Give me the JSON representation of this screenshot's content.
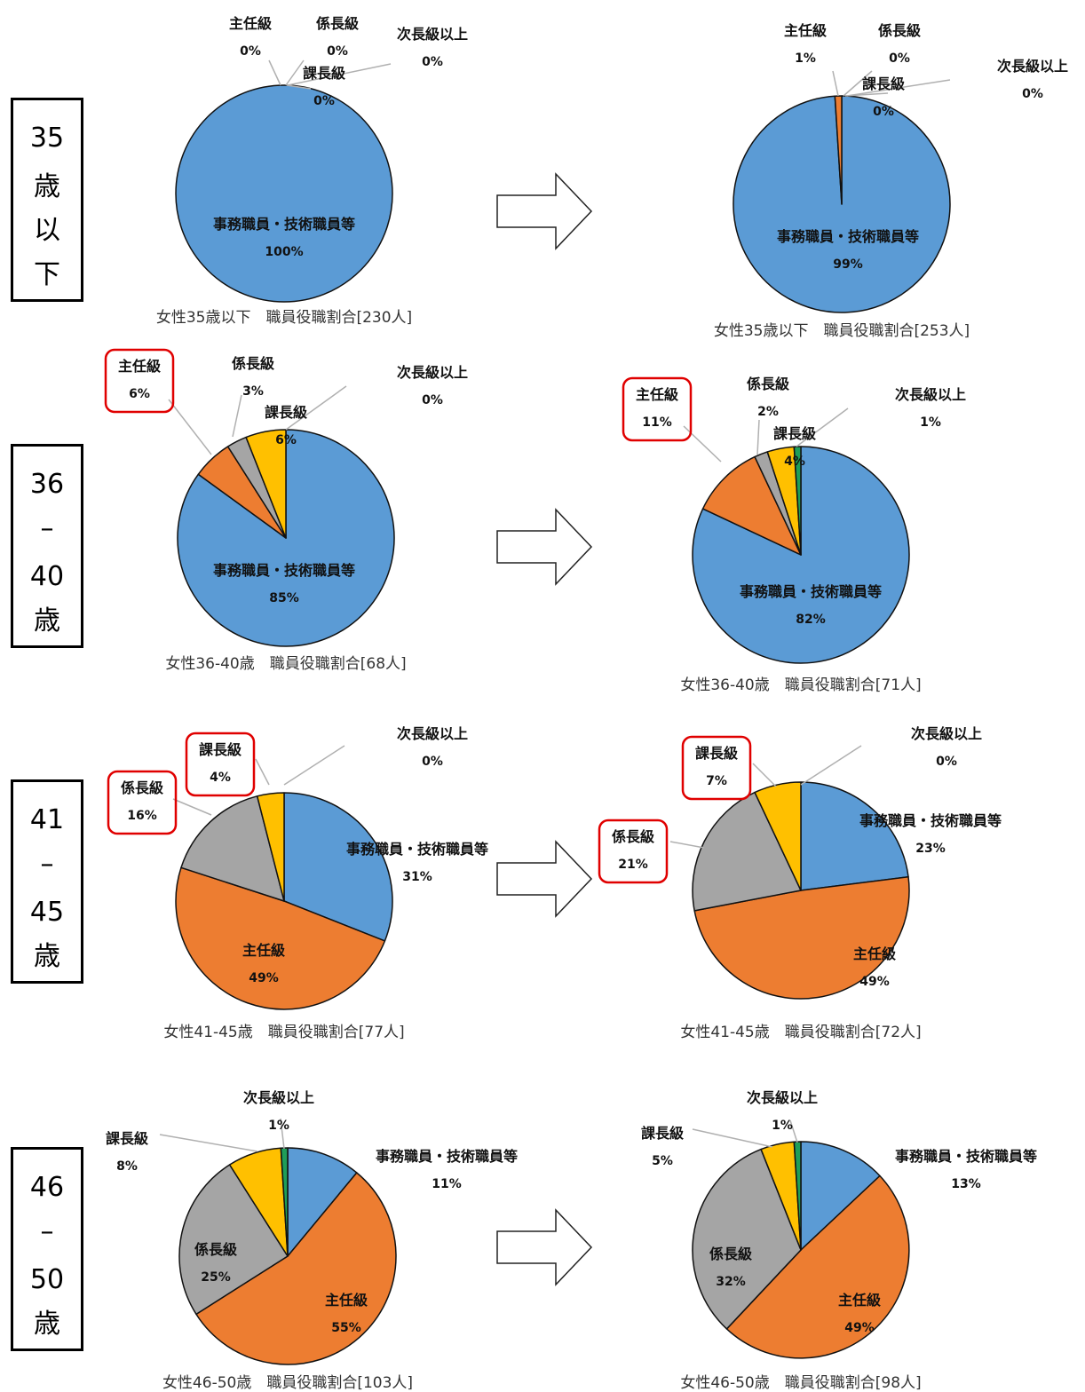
{
  "colors": {
    "事務職員・技術職員等": "#5b9bd5",
    "主任級": "#ed7d31",
    "係長級": "#a5a5a5",
    "課長級": "#ffc000",
    "次長級以上": "#1f9e59"
  },
  "age_groups": [
    {
      "label": [
        "35",
        "歳",
        "以",
        "下"
      ]
    },
    {
      "label": [
        "36",
        "–",
        "40",
        "歳"
      ]
    },
    {
      "label": [
        "41",
        "–",
        "45",
        "歳"
      ]
    },
    {
      "label": [
        "46",
        "–",
        "50",
        "歳"
      ]
    }
  ],
  "chart_data": [
    {
      "type": "pie",
      "title": "女性35歳以下　職員役職割合[230人]",
      "categories": [
        "事務職員・技術職員等",
        "主任級",
        "係長級",
        "課長級",
        "次長級以上"
      ],
      "values": [
        100,
        0,
        0,
        0,
        0
      ]
    },
    {
      "type": "pie",
      "title": "女性35歳以下　職員役職割合[253人]",
      "categories": [
        "事務職員・技術職員等",
        "主任級",
        "係長級",
        "課長級",
        "次長級以上"
      ],
      "values": [
        99,
        1,
        0,
        0,
        0
      ]
    },
    {
      "type": "pie",
      "title": "女性36-40歳　職員役職割合[68人]",
      "categories": [
        "事務職員・技術職員等",
        "主任級",
        "係長級",
        "課長級",
        "次長級以上"
      ],
      "values": [
        85,
        6,
        3,
        6,
        0
      ]
    },
    {
      "type": "pie",
      "title": "女性36-40歳　職員役職割合[71人]",
      "categories": [
        "事務職員・技術職員等",
        "主任級",
        "係長級",
        "課長級",
        "次長級以上"
      ],
      "values": [
        82,
        11,
        2,
        4,
        1
      ]
    },
    {
      "type": "pie",
      "title": "女性41-45歳　職員役職割合[77人]",
      "categories": [
        "事務職員・技術職員等",
        "主任級",
        "係長級",
        "課長級",
        "次長級以上"
      ],
      "values": [
        31,
        49,
        16,
        4,
        0
      ]
    },
    {
      "type": "pie",
      "title": "女性41-45歳　職員役職割合[72人]",
      "categories": [
        "事務職員・技術職員等",
        "主任級",
        "係長級",
        "課長級",
        "次長級以上"
      ],
      "values": [
        23,
        49,
        21,
        7,
        0
      ]
    },
    {
      "type": "pie",
      "title": "女性46-50歳　職員役職割合[103人]",
      "categories": [
        "事務職員・技術職員等",
        "主任級",
        "係長級",
        "課長級",
        "次長級以上"
      ],
      "values": [
        11,
        55,
        25,
        8,
        1
      ]
    },
    {
      "type": "pie",
      "title": "女性46-50歳　職員役職割合[98人]",
      "categories": [
        "事務職員・技術職員等",
        "主任級",
        "係長級",
        "課長級",
        "次長級以上"
      ],
      "values": [
        13,
        49,
        32,
        5,
        1
      ]
    }
  ],
  "highlighted_labels": [
    {
      "chart": 2,
      "category": "主任級"
    },
    {
      "chart": 3,
      "category": "主任級"
    },
    {
      "chart": 4,
      "category": "係長級"
    },
    {
      "chart": 4,
      "category": "課長級"
    },
    {
      "chart": 5,
      "category": "係長級"
    },
    {
      "chart": 5,
      "category": "課長級"
    }
  ]
}
